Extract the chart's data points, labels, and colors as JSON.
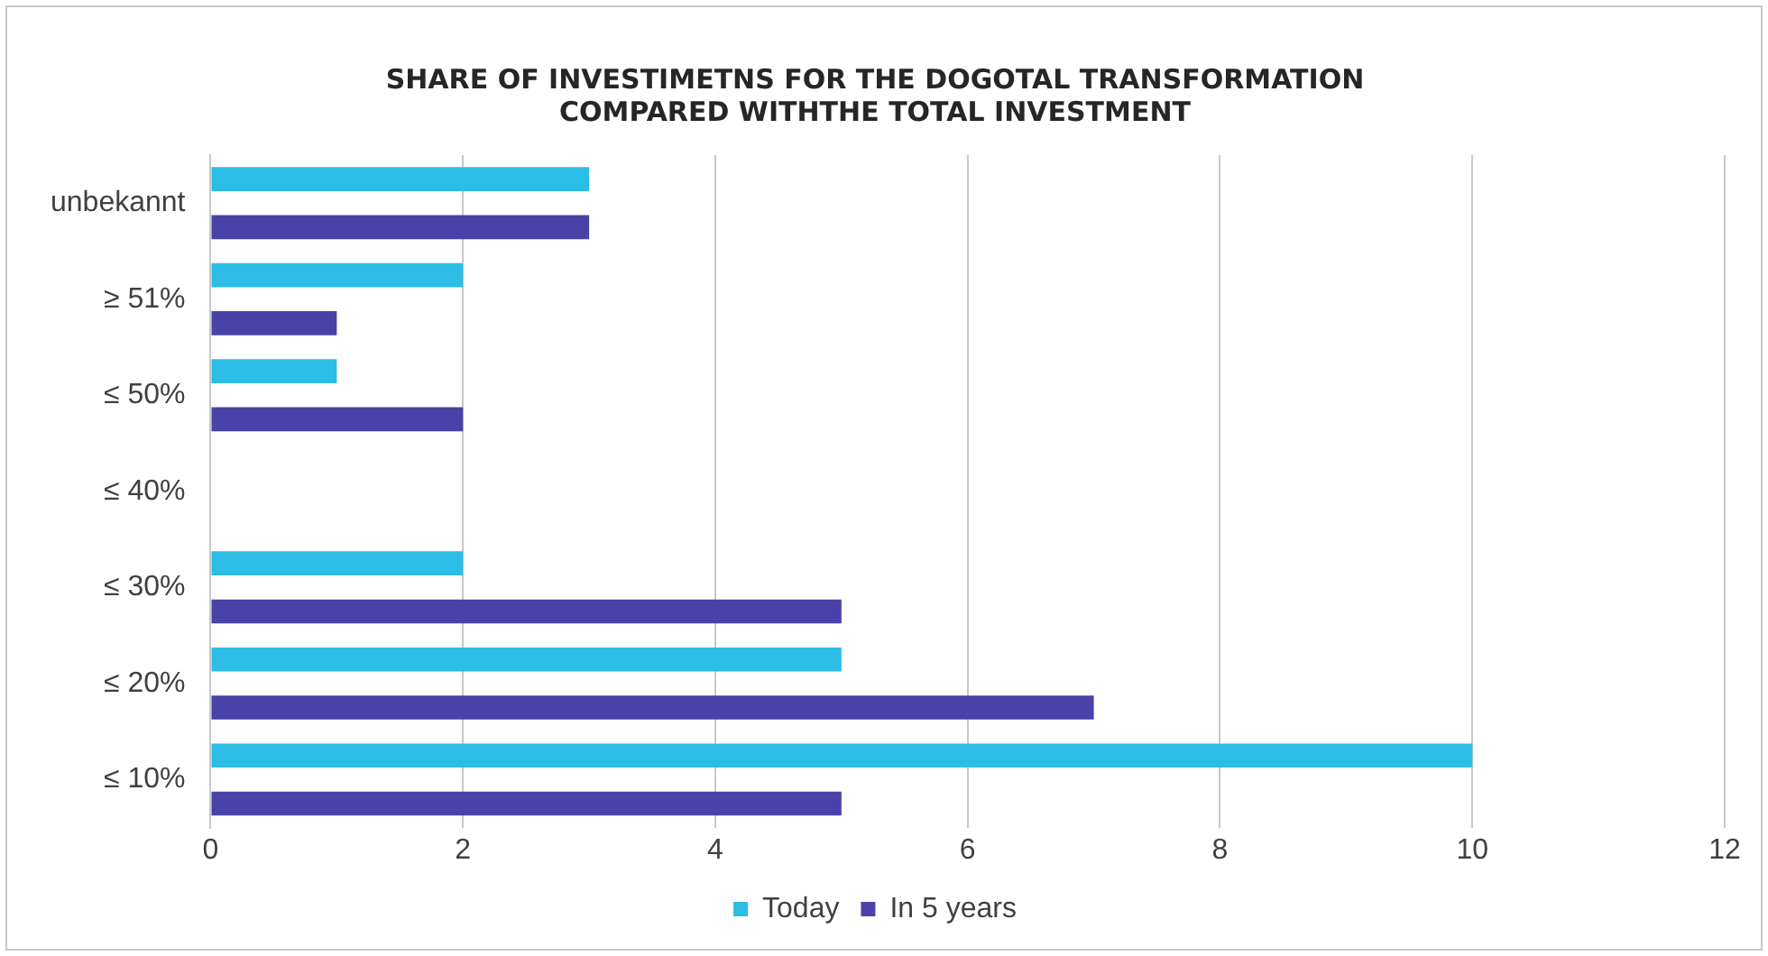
{
  "chart_data": {
    "type": "bar",
    "orientation": "horizontal",
    "title": "SHARE OF INVESTIMETNS FOR THE DOGOTAL TRANSFORMATION\nCOMPARED WITHTHE TOTAL INVESTMENT",
    "categories": [
      "unbekannt",
      "≥ 51%",
      "≤ 50%",
      "≤ 40%",
      "≤ 30%",
      "≤ 20%",
      "≤ 10%"
    ],
    "series": [
      {
        "name": "Today",
        "color": "#2bbde6",
        "values": [
          3,
          2,
          1,
          0,
          2,
          5,
          10
        ]
      },
      {
        "name": "In 5 years",
        "color": "#4a42a8",
        "values": [
          3,
          1,
          2,
          0,
          5,
          7,
          5
        ]
      }
    ],
    "xlim": [
      0,
      12
    ],
    "xticks": [
      0,
      2,
      4,
      6,
      8,
      10,
      12
    ],
    "grid": "x",
    "legend": "bottom"
  }
}
